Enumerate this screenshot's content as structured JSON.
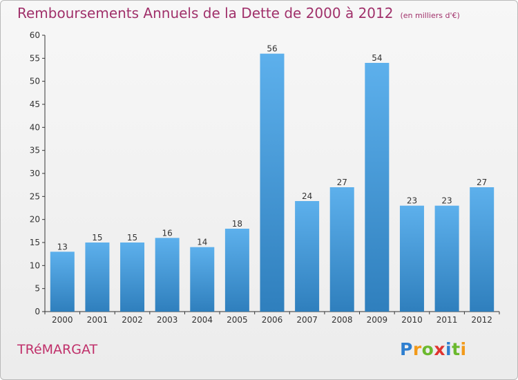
{
  "title": "Remboursements Annuels de la Dette de 2000 à 2012",
  "subtitle": "(en milliers d'€)",
  "city": "TRéMARGAT",
  "logo": {
    "letters": [
      "P",
      "r",
      "o",
      "x",
      "i",
      "t",
      "i"
    ],
    "colors": [
      "#2f7fd0",
      "#f29a1a",
      "#6bb92e",
      "#e0342f",
      "#2f7fd0",
      "#6bb92e",
      "#f29a1a"
    ]
  },
  "colors": {
    "bar_top": "#5db0ec",
    "bar_bottom": "#2f7fbd",
    "axis": "#333333",
    "title": "#a0306a"
  },
  "chart_data": {
    "type": "bar",
    "title": "Remboursements Annuels de la Dette de 2000 à 2012",
    "subtitle": "(en milliers d'€)",
    "categories": [
      "2000",
      "2001",
      "2002",
      "2003",
      "2004",
      "2005",
      "2006",
      "2007",
      "2008",
      "2009",
      "2010",
      "2011",
      "2012"
    ],
    "values": [
      13,
      15,
      15,
      16,
      14,
      18,
      56,
      24,
      27,
      54,
      23,
      23,
      27
    ],
    "ylim": [
      0,
      60
    ],
    "yticks": [
      0,
      5,
      10,
      15,
      20,
      25,
      30,
      35,
      40,
      45,
      50,
      55,
      60
    ],
    "grid": false,
    "data_labels": true
  }
}
